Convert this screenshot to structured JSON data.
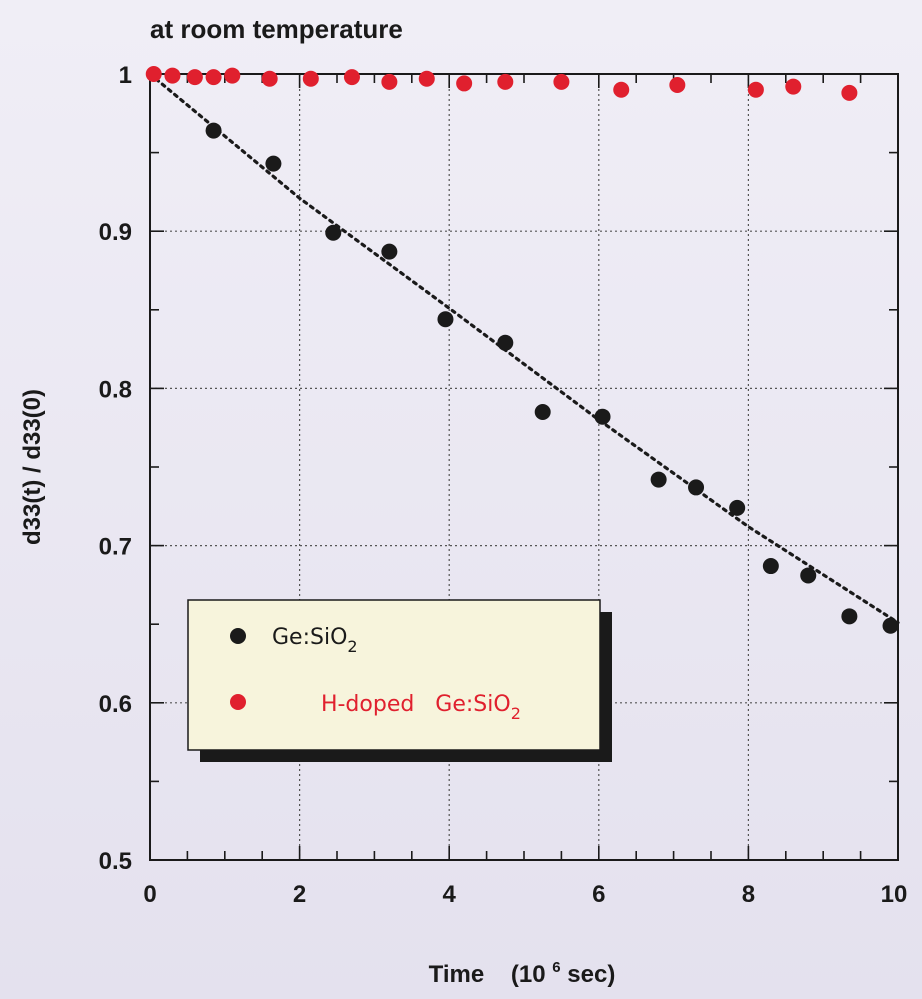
{
  "chart_data": {
    "type": "scatter",
    "title": "at room temperature",
    "xlabel_main": "Time",
    "xlabel_unit_pre": "(10",
    "xlabel_unit_sup": "6",
    "xlabel_unit_post": " sec)",
    "ylabel": "d33(t) / d33(0)",
    "xlim": [
      0,
      10
    ],
    "ylim": [
      0.5,
      1.0
    ],
    "x_tick_labels": [
      "0",
      "2",
      "4",
      "6",
      "8",
      "10"
    ],
    "y_tick_labels": [
      "0.5",
      "0.6",
      "0.7",
      "0.8",
      "0.9",
      "1"
    ],
    "grid": true,
    "legend_position": "lower-left",
    "series": [
      {
        "name": "Ge:SiO2",
        "color": "#1a1a1a",
        "x": [
          0.85,
          1.65,
          2.45,
          3.2,
          3.95,
          4.75,
          5.25,
          6.05,
          6.8,
          7.3,
          7.85,
          8.3,
          8.8,
          9.35,
          9.9
        ],
        "y": [
          0.964,
          0.943,
          0.899,
          0.887,
          0.844,
          0.829,
          0.785,
          0.782,
          0.742,
          0.737,
          0.724,
          0.687,
          0.681,
          0.655,
          0.649
        ]
      },
      {
        "name": "H-doped Ge:SiO2",
        "color": "#e0202e",
        "x": [
          0.05,
          0.3,
          0.6,
          0.85,
          1.1,
          1.6,
          2.15,
          2.7,
          3.2,
          3.7,
          4.2,
          4.75,
          5.5,
          6.3,
          7.05,
          8.1,
          8.6,
          9.35
        ],
        "y": [
          1.0,
          0.999,
          0.998,
          0.998,
          0.999,
          0.997,
          0.997,
          0.998,
          0.995,
          0.997,
          0.994,
          0.995,
          0.995,
          0.99,
          0.993,
          0.99,
          0.992,
          0.988
        ]
      }
    ],
    "fit_line": {
      "style": "dotted",
      "color": "#1a1a1a",
      "x": [
        0,
        2,
        4,
        6,
        8,
        10
      ],
      "y": [
        1.0,
        0.921,
        0.851,
        0.78,
        0.712,
        0.651
      ]
    },
    "legend": [
      {
        "prefix": "Ge:SiO",
        "sub": "2",
        "color": "#1a1a1a",
        "text_color": "#1a1a1a"
      },
      {
        "prefix": "H-doped   Ge:SiO",
        "sub": "2",
        "color": "#e0202e",
        "text_color": "#e0202e"
      }
    ]
  }
}
